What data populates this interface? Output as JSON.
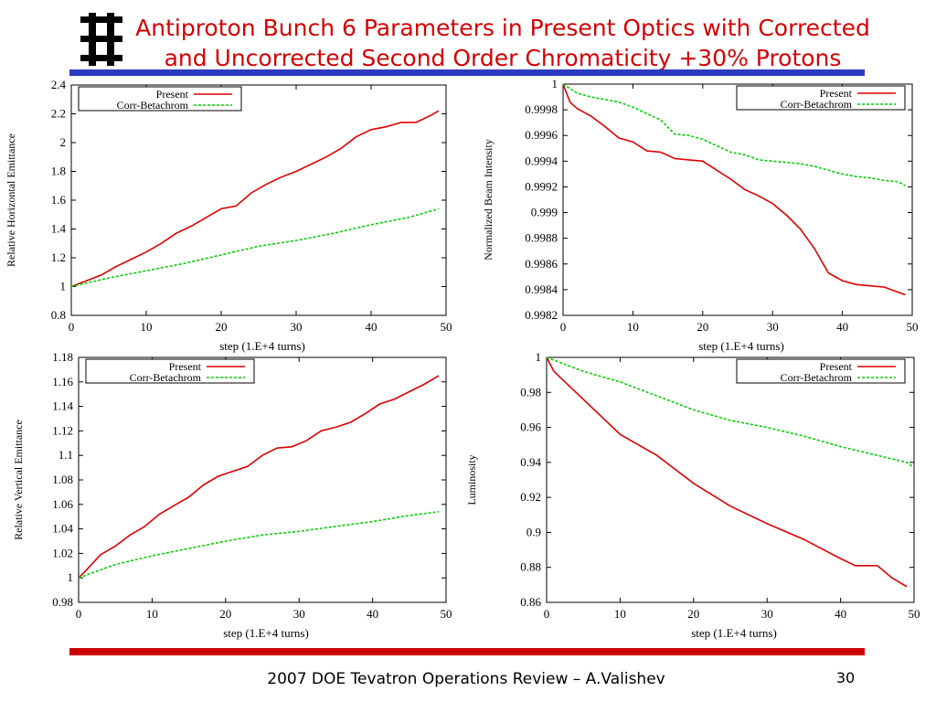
{
  "slide": {
    "title_line1": "Antiproton Bunch 6 Parameters in Present Optics with Corrected",
    "title_line2": "and Uncorrected Second Order Chromaticity +30% Protons",
    "footer": "2007 DOE Tevatron Operations Review – A.Valishev",
    "page_number": "30",
    "colors": {
      "title": "#d40000",
      "top_bar": "#2b3ac2",
      "bottom_bar": "#cc0000"
    }
  },
  "chart_data": [
    {
      "type": "line",
      "position": "top-left",
      "xlabel": "step (1.E+4 turns)",
      "ylabel": "Relative Horizontal Emittance",
      "xlim": [
        0,
        50
      ],
      "ylim": [
        0.8,
        2.4
      ],
      "xticks": [
        0,
        10,
        20,
        30,
        40,
        50
      ],
      "yticks": [
        0.8,
        1,
        1.2,
        1.4,
        1.6,
        1.8,
        2,
        2.2,
        2.4
      ],
      "ytick_labels": [
        "0.8",
        "1",
        "1.2",
        "1.4",
        "1.6",
        "1.8",
        "2",
        "2.2",
        "2.4"
      ],
      "legend_position": "top-left",
      "series": [
        {
          "name": "Present",
          "color": "#e00000",
          "dash": "solid",
          "x": [
            0,
            2,
            4,
            6,
            8,
            10,
            12,
            14,
            16,
            18,
            20,
            22,
            24,
            26,
            28,
            30,
            32,
            34,
            36,
            38,
            40,
            42,
            44,
            46,
            48,
            49
          ],
          "y": [
            1.0,
            1.04,
            1.08,
            1.14,
            1.19,
            1.24,
            1.3,
            1.37,
            1.42,
            1.48,
            1.54,
            1.56,
            1.65,
            1.71,
            1.76,
            1.8,
            1.85,
            1.9,
            1.96,
            2.04,
            2.09,
            2.11,
            2.14,
            2.14,
            2.19,
            2.22
          ]
        },
        {
          "name": "Corr-Betachrom",
          "color": "#00d000",
          "dash": "dashed",
          "x": [
            0,
            5,
            10,
            15,
            20,
            25,
            30,
            35,
            40,
            45,
            49
          ],
          "y": [
            1.0,
            1.06,
            1.11,
            1.16,
            1.22,
            1.28,
            1.32,
            1.37,
            1.43,
            1.48,
            1.54
          ]
        }
      ]
    },
    {
      "type": "line",
      "position": "top-right",
      "xlabel": "step (1.E+4 turns)",
      "ylabel": "Normalized Beam Intensity",
      "xlim": [
        0,
        50
      ],
      "ylim": [
        0.9982,
        1.0
      ],
      "xticks": [
        0,
        10,
        20,
        30,
        40,
        50
      ],
      "yticks": [
        0.9982,
        0.9984,
        0.9986,
        0.9988,
        0.999,
        0.9992,
        0.9994,
        0.9996,
        0.9998,
        1.0
      ],
      "ytick_labels": [
        "0.9982",
        "0.9984",
        "0.9986",
        "0.9988",
        "0.999",
        "0.9992",
        "0.9994",
        "0.9996",
        "0.9998",
        "1"
      ],
      "legend_position": "top-right",
      "series": [
        {
          "name": "Present",
          "color": "#e00000",
          "dash": "solid",
          "x": [
            0,
            1,
            2,
            4,
            6,
            8,
            10,
            12,
            14,
            16,
            18,
            20,
            22,
            24,
            26,
            28,
            30,
            32,
            34,
            36,
            38,
            40,
            42,
            44,
            46,
            48,
            49
          ],
          "y": [
            1.0,
            0.99986,
            0.99981,
            0.99975,
            0.99967,
            0.99958,
            0.99955,
            0.99948,
            0.99947,
            0.99942,
            0.99941,
            0.9994,
            0.99933,
            0.99926,
            0.99918,
            0.99913,
            0.99907,
            0.99898,
            0.99887,
            0.99872,
            0.99853,
            0.99847,
            0.99844,
            0.99843,
            0.99842,
            0.99838,
            0.99836
          ]
        },
        {
          "name": "Corr-Betachrom",
          "color": "#00d000",
          "dash": "dashed",
          "x": [
            0,
            2,
            4,
            6,
            8,
            10,
            12,
            14,
            16,
            18,
            20,
            22,
            24,
            26,
            28,
            30,
            32,
            34,
            36,
            38,
            40,
            42,
            44,
            46,
            48,
            49
          ],
          "y": [
            1.0,
            0.99993,
            0.9999,
            0.99988,
            0.99986,
            0.99982,
            0.99977,
            0.99972,
            0.99961,
            0.9996,
            0.99957,
            0.99952,
            0.99947,
            0.99945,
            0.99941,
            0.9994,
            0.99939,
            0.99938,
            0.99936,
            0.99933,
            0.9993,
            0.99928,
            0.99927,
            0.99925,
            0.99924,
            0.99921
          ]
        }
      ]
    },
    {
      "type": "line",
      "position": "bottom-left",
      "xlabel": "step (1.E+4 turns)",
      "ylabel": "Relative Vertical Emittance",
      "xlim": [
        0,
        50
      ],
      "ylim": [
        0.98,
        1.18
      ],
      "xticks": [
        0,
        10,
        20,
        30,
        40,
        50
      ],
      "yticks": [
        0.98,
        1.0,
        1.02,
        1.04,
        1.06,
        1.08,
        1.1,
        1.12,
        1.14,
        1.16,
        1.18
      ],
      "ytick_labels": [
        "0.98",
        "1",
        "1.02",
        "1.04",
        "1.06",
        "1.08",
        "1.1",
        "1.12",
        "1.14",
        "1.16",
        "1.18"
      ],
      "legend_position": "top-left",
      "series": [
        {
          "name": "Present",
          "color": "#e00000",
          "dash": "solid",
          "x": [
            0,
            1,
            3,
            5,
            7,
            9,
            11,
            13,
            15,
            17,
            19,
            21,
            23,
            25,
            27,
            29,
            31,
            33,
            35,
            37,
            39,
            41,
            43,
            45,
            47,
            49
          ],
          "y": [
            1.0,
            1.006,
            1.019,
            1.026,
            1.035,
            1.042,
            1.052,
            1.059,
            1.066,
            1.076,
            1.083,
            1.087,
            1.091,
            1.1,
            1.106,
            1.107,
            1.112,
            1.12,
            1.123,
            1.127,
            1.134,
            1.142,
            1.146,
            1.152,
            1.158,
            1.165
          ]
        },
        {
          "name": "Corr-Betachrom",
          "color": "#00d000",
          "dash": "dashed",
          "x": [
            0,
            5,
            10,
            15,
            20,
            25,
            30,
            35,
            40,
            45,
            49
          ],
          "y": [
            1.0,
            1.011,
            1.018,
            1.024,
            1.03,
            1.035,
            1.038,
            1.042,
            1.046,
            1.051,
            1.054
          ]
        }
      ]
    },
    {
      "type": "line",
      "position": "bottom-right",
      "xlabel": "step (1.E+4 turns)",
      "ylabel": "Luminosity",
      "xlim": [
        0,
        50
      ],
      "ylim": [
        0.86,
        1.0
      ],
      "xticks": [
        0,
        10,
        20,
        30,
        40,
        50
      ],
      "yticks": [
        0.86,
        0.88,
        0.9,
        0.92,
        0.94,
        0.96,
        0.98,
        1.0
      ],
      "ytick_labels": [
        "0.86",
        "0.88",
        "0.9",
        "0.92",
        "0.94",
        "0.96",
        "0.98",
        "1"
      ],
      "legend_position": "top-right",
      "series": [
        {
          "name": "Present",
          "color": "#e00000",
          "dash": "solid",
          "x": [
            0,
            1,
            5,
            10,
            15,
            20,
            25,
            30,
            35,
            40,
            42,
            45,
            47,
            49
          ],
          "y": [
            1.0,
            0.992,
            0.976,
            0.956,
            0.944,
            0.928,
            0.915,
            0.905,
            0.896,
            0.885,
            0.881,
            0.881,
            0.874,
            0.869
          ]
        },
        {
          "name": "Corr-Betachrom",
          "color": "#00d000",
          "dash": "dashed",
          "x": [
            0,
            5,
            10,
            15,
            20,
            25,
            30,
            35,
            40,
            45,
            49,
            50
          ],
          "y": [
            1.0,
            0.992,
            0.986,
            0.978,
            0.97,
            0.964,
            0.96,
            0.955,
            0.949,
            0.944,
            0.94,
            0.937
          ]
        }
      ]
    }
  ]
}
